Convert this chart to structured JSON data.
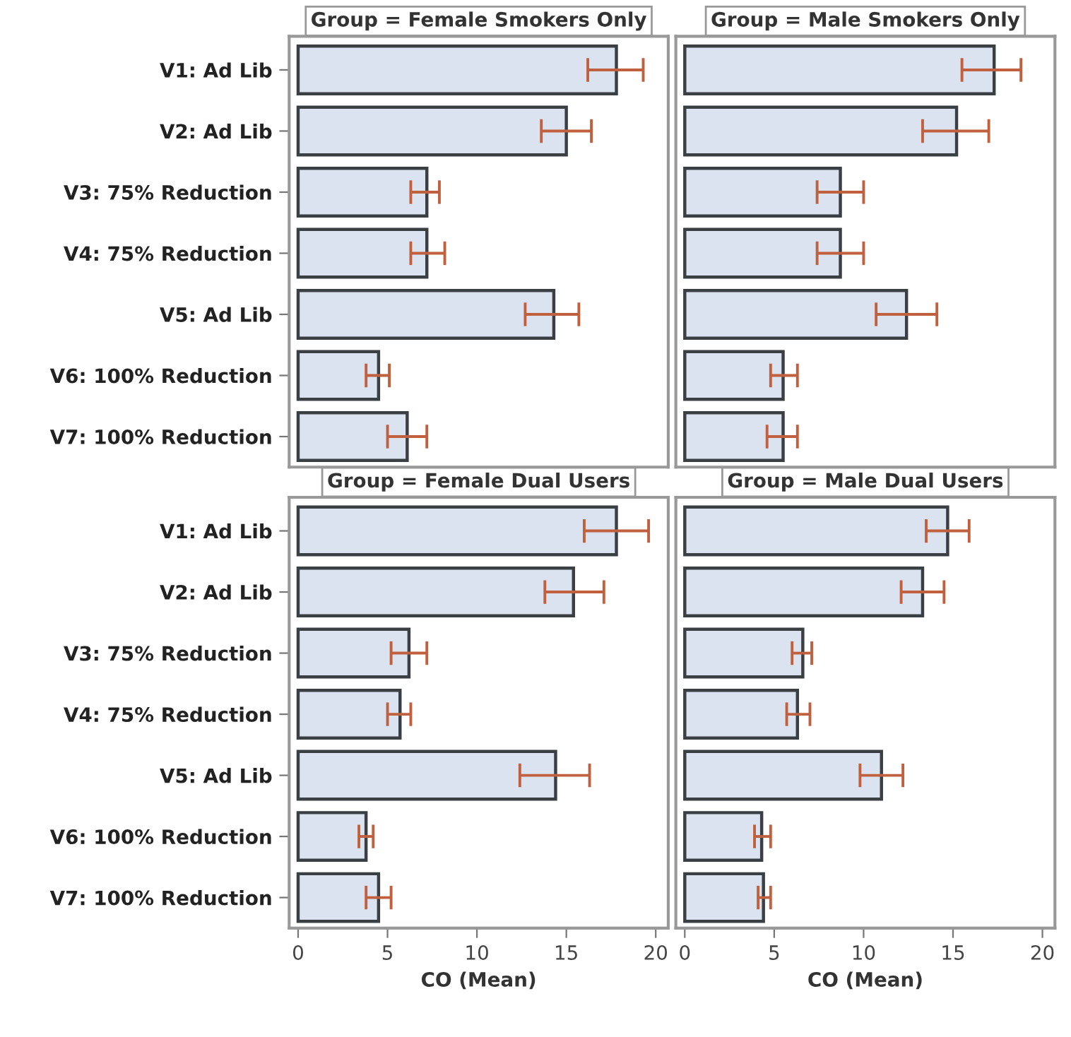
{
  "chart_data": [
    {
      "type": "bar",
      "orientation": "horizontal",
      "title": "Group = Female Smokers Only",
      "categories": [
        "V1: Ad Lib",
        "V2: Ad Lib",
        "V3: 75% Reduction",
        "V4: 75% Reduction",
        "V5: Ad Lib",
        "V6: 100% Reduction",
        "V7: 100% Reduction"
      ],
      "values": [
        17.8,
        15.0,
        7.2,
        7.2,
        14.3,
        4.5,
        6.1
      ],
      "errors": [
        [
          16.2,
          19.3
        ],
        [
          13.6,
          16.4
        ],
        [
          6.3,
          7.9
        ],
        [
          6.3,
          8.2
        ],
        [
          12.7,
          15.7
        ],
        [
          3.8,
          5.1
        ],
        [
          5.0,
          7.2
        ]
      ],
      "color": "#dbe3f0",
      "xlim": [
        -0.5,
        20.7
      ],
      "xticks": [
        0,
        5,
        10,
        15,
        20
      ],
      "tick_labels": "y"
    },
    {
      "type": "bar",
      "orientation": "horizontal",
      "title": "Group = Male Smokers Only",
      "categories": [
        null,
        null,
        null,
        null,
        null,
        null,
        null
      ],
      "values": [
        17.3,
        15.2,
        8.7,
        8.7,
        12.4,
        5.5,
        5.5
      ],
      "errors": [
        [
          15.5,
          18.8
        ],
        [
          13.3,
          17.0
        ],
        [
          7.4,
          10.0
        ],
        [
          7.4,
          10.0
        ],
        [
          10.7,
          14.1
        ],
        [
          4.8,
          6.3
        ],
        [
          4.6,
          6.3
        ]
      ],
      "color": "#dbe3f0",
      "xlim": [
        -0.5,
        20.7
      ],
      "xticks": [
        0,
        5,
        10,
        15,
        20
      ],
      "tick_labels": false
    },
    {
      "type": "bar",
      "orientation": "horizontal",
      "title": "Group = Female Dual Users",
      "xlabel": "CO (Mean)",
      "categories": [
        "V1: Ad Lib",
        "V2: Ad Lib",
        "V3: 75% Reduction",
        "V4: 75% Reduction",
        "V5: Ad Lib",
        "V6: 100% Reduction",
        "V7: 100% Reduction"
      ],
      "values": [
        17.8,
        15.4,
        6.2,
        5.7,
        14.4,
        3.8,
        4.5
      ],
      "errors": [
        [
          16.0,
          19.6
        ],
        [
          13.8,
          17.1
        ],
        [
          5.2,
          7.2
        ],
        [
          5.0,
          6.3
        ],
        [
          12.4,
          16.3
        ],
        [
          3.4,
          4.2
        ],
        [
          3.8,
          5.2
        ]
      ],
      "color": "#dbe3f0",
      "xlim": [
        -0.5,
        20.7
      ],
      "xticks": [
        0,
        5,
        10,
        15,
        20
      ]
    },
    {
      "type": "bar",
      "orientation": "horizontal",
      "title": "Group = Male Dual Users",
      "xlabel": "CO (Mean)",
      "categories": [
        null,
        null,
        null,
        null,
        null,
        null,
        null
      ],
      "values": [
        14.7,
        13.3,
        6.6,
        6.3,
        11.0,
        4.3,
        4.4
      ],
      "errors": [
        [
          13.5,
          15.9
        ],
        [
          12.1,
          14.5
        ],
        [
          6.0,
          7.1
        ],
        [
          5.7,
          7.0
        ],
        [
          9.8,
          12.2
        ],
        [
          3.9,
          4.8
        ],
        [
          4.1,
          4.8
        ]
      ],
      "color": "#dbe3f0",
      "xlim": [
        -0.5,
        20.7
      ],
      "xticks": [
        0,
        5,
        10,
        15,
        20
      ],
      "tick_labels": "x"
    }
  ]
}
